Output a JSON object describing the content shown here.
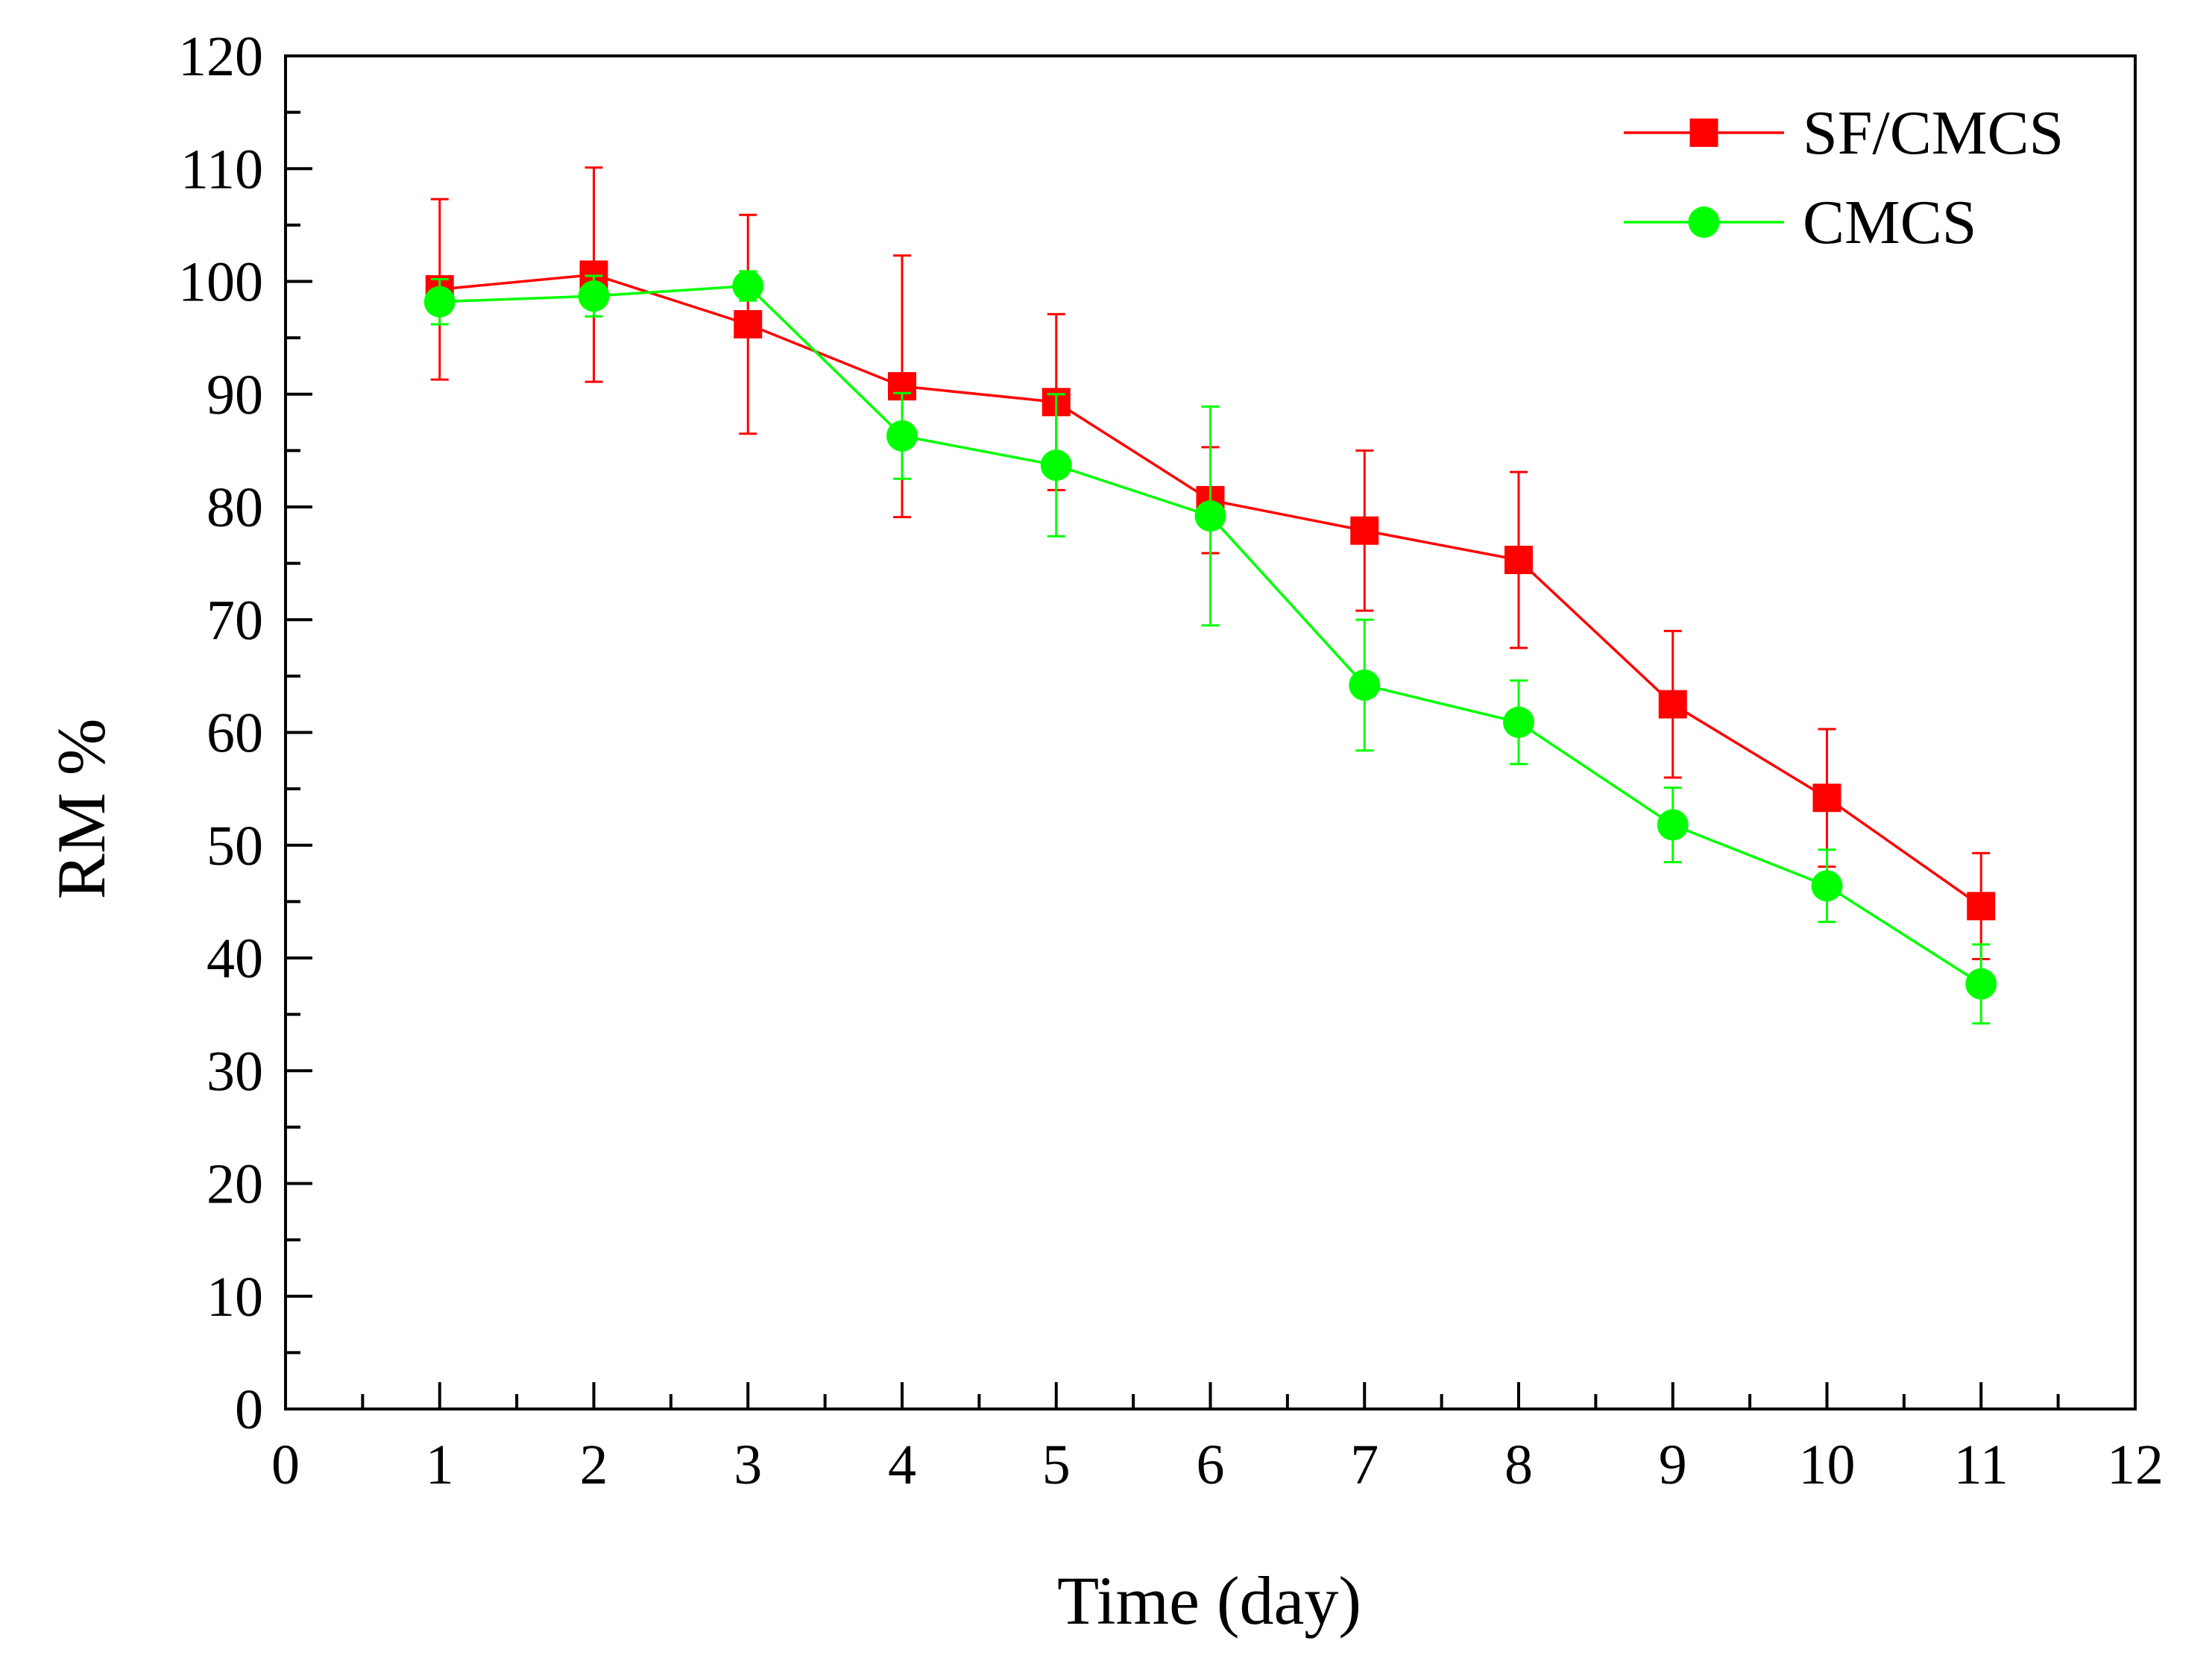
{
  "chart_data": {
    "type": "line",
    "title": "",
    "xlabel": "Time (day)",
    "ylabel": "RM %",
    "xlim": [
      0,
      12
    ],
    "ylim": [
      0,
      120
    ],
    "x_ticks": [
      "0",
      "1",
      "2",
      "3",
      "4",
      "5",
      "6",
      "7",
      "8",
      "9",
      "10",
      "11",
      "12"
    ],
    "y_ticks": [
      "0",
      "10",
      "20",
      "30",
      "40",
      "50",
      "60",
      "70",
      "80",
      "90",
      "100",
      "110",
      "120"
    ],
    "grid": false,
    "legend_position": "top-right",
    "x": [
      1,
      2,
      3,
      4,
      5,
      6,
      7,
      8,
      9,
      10,
      11
    ],
    "series": [
      {
        "name": "SF/CMCS",
        "color": "#ff0000",
        "marker": "square",
        "values": [
          99.3,
          100.6,
          96.2,
          90.7,
          89.3,
          80.6,
          77.9,
          75.3,
          62.5,
          54.2,
          44.6
        ],
        "error": [
          8.0,
          9.5,
          9.7,
          11.6,
          7.8,
          4.7,
          7.1,
          7.8,
          6.5,
          6.1,
          4.7
        ]
      },
      {
        "name": "CMCS",
        "color": "#00ff00",
        "marker": "circle",
        "values": [
          98.2,
          98.7,
          99.6,
          86.3,
          83.7,
          79.2,
          64.2,
          60.9,
          51.8,
          46.4,
          37.7
        ],
        "error": [
          2.0,
          1.8,
          1.3,
          3.8,
          6.3,
          9.7,
          5.8,
          3.7,
          3.3,
          3.2,
          3.5
        ]
      }
    ]
  }
}
